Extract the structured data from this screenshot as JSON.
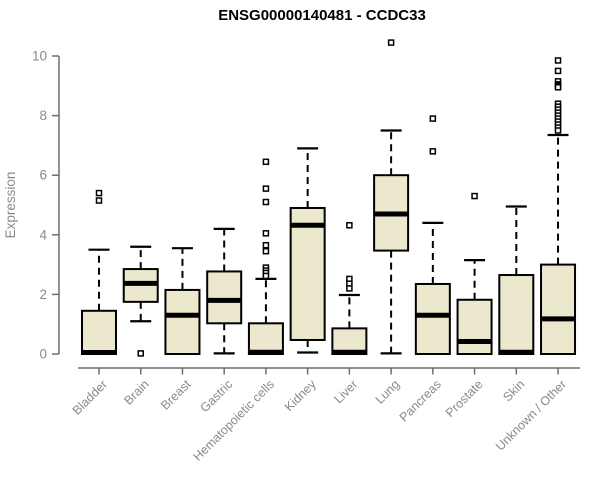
{
  "window": {
    "title": "ENSG00000140481 - CCDC33"
  },
  "colors": {
    "background": "#ffffff",
    "box_fill": "#ECE8CE",
    "box_border": "#000000",
    "median": "#000000",
    "whisker": "#000000",
    "outlier_stroke": "#000000",
    "axis_line": "#6e6e6e",
    "axis_text": "#8a8a8a",
    "title_text": "#000000"
  },
  "chart_data": {
    "type": "boxplot",
    "title": "ENSG00000140481 - CCDC33",
    "xlabel": "",
    "ylabel": "Expression",
    "ylim": [
      0,
      10.6
    ],
    "yticks": [
      0,
      2,
      4,
      6,
      8,
      10
    ],
    "grid": "off",
    "legend": "none",
    "categories": [
      "Bladder",
      "Brain",
      "Breast",
      "Gastric",
      "Hematopoietic cells",
      "Kidney",
      "Liver",
      "Lung",
      "Pancreas",
      "Prostate",
      "Skin",
      "Unknown / Other"
    ],
    "series": [
      {
        "name": "Bladder",
        "low": 0,
        "q1": 0,
        "median": 0.05,
        "q3": 1.45,
        "high": 3.5,
        "outliers": [
          5.4,
          5.15
        ]
      },
      {
        "name": "Brain",
        "low": 1.1,
        "q1": 1.75,
        "median": 2.37,
        "q3": 2.85,
        "high": 3.6,
        "outliers": [
          0.02
        ]
      },
      {
        "name": "Breast",
        "low": 0,
        "q1": 0,
        "median": 1.3,
        "q3": 2.15,
        "high": 3.55,
        "outliers": []
      },
      {
        "name": "Gastric",
        "low": 0.02,
        "q1": 1.03,
        "median": 1.8,
        "q3": 2.77,
        "high": 4.2,
        "outliers": []
      },
      {
        "name": "Hematopoietic cells",
        "low": 0,
        "q1": 0,
        "median": 0.06,
        "q3": 1.03,
        "high": 2.52,
        "outliers": [
          6.45,
          5.55,
          5.1,
          4.05,
          3.65,
          3.45,
          2.9,
          2.8,
          2.72,
          2.62
        ]
      },
      {
        "name": "Kidney",
        "low": 0.05,
        "q1": 0.47,
        "median": 4.32,
        "q3": 4.9,
        "high": 6.9,
        "outliers": []
      },
      {
        "name": "Liver",
        "low": 0,
        "q1": 0,
        "median": 0.06,
        "q3": 0.86,
        "high": 1.98,
        "outliers": [
          4.32,
          2.52,
          2.36,
          2.2
        ]
      },
      {
        "name": "Lung",
        "low": 0.02,
        "q1": 3.47,
        "median": 4.7,
        "q3": 6.0,
        "high": 7.5,
        "outliers": [
          10.45
        ]
      },
      {
        "name": "Pancreas",
        "low": 0,
        "q1": 0,
        "median": 1.3,
        "q3": 2.35,
        "high": 4.4,
        "outliers": [
          7.9,
          6.8
        ]
      },
      {
        "name": "Prostate",
        "low": 0,
        "q1": 0,
        "median": 0.42,
        "q3": 1.82,
        "high": 3.15,
        "outliers": [
          5.3
        ]
      },
      {
        "name": "Skin",
        "low": 0,
        "q1": 0,
        "median": 0.06,
        "q3": 2.65,
        "high": 4.95,
        "outliers": []
      },
      {
        "name": "Unknown / Other",
        "low": 0,
        "q1": 0,
        "median": 1.18,
        "q3": 3.0,
        "high": 7.35,
        "outliers": [
          9.85,
          9.5,
          9.15,
          9.05,
          9.0,
          8.95,
          8.4,
          8.3,
          8.2,
          8.1,
          8.0,
          7.9,
          7.8,
          7.7,
          7.6,
          7.5
        ]
      }
    ]
  }
}
